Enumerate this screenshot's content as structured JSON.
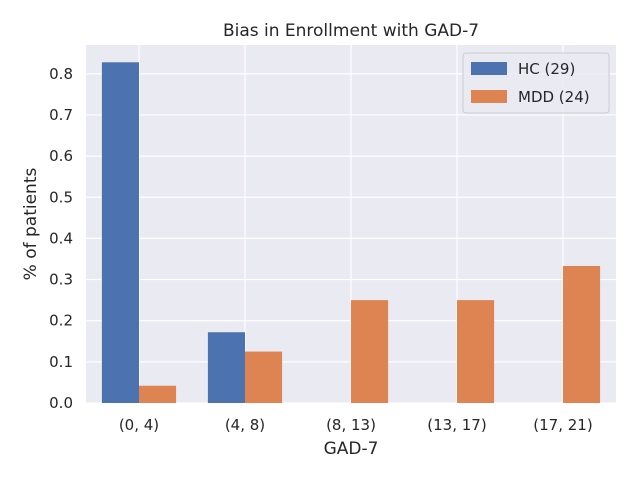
{
  "chart_data": {
    "type": "bar",
    "title": "Bias in Enrollment with GAD-7",
    "xlabel": "GAD-7",
    "ylabel": "% of patients",
    "categories": [
      "(0, 4)",
      "(4, 8)",
      "(8, 13)",
      "(13, 17)",
      "(17, 21)"
    ],
    "series": [
      {
        "name": "HC (29)",
        "values": [
          0.828,
          0.172,
          0.0,
          0.0,
          0.0
        ],
        "color": "#4c72b0"
      },
      {
        "name": "MDD (24)",
        "values": [
          0.042,
          0.125,
          0.25,
          0.25,
          0.333
        ],
        "color": "#dd8452"
      }
    ],
    "ylim": [
      0,
      0.87
    ],
    "yticks": [
      0.0,
      0.1,
      0.2,
      0.3,
      0.4,
      0.5,
      0.6,
      0.7,
      0.8
    ],
    "ytick_labels": [
      "0.0",
      "0.1",
      "0.2",
      "0.3",
      "0.4",
      "0.5",
      "0.6",
      "0.7",
      "0.8"
    ],
    "grid": true,
    "legend_position": "top-right",
    "background_color": "#eaeaf2",
    "grid_color": "#ffffff"
  }
}
